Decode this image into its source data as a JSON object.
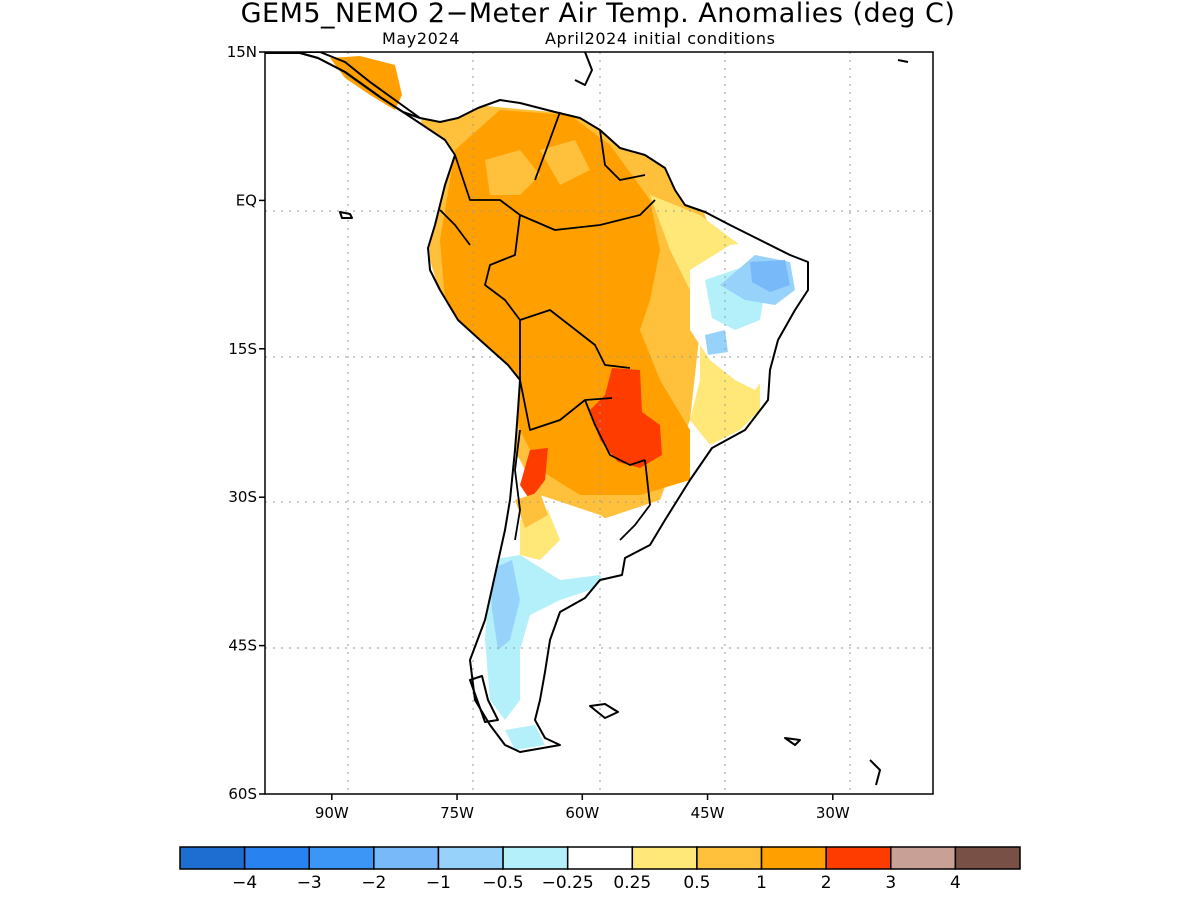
{
  "title": "GEM5_NEMO 2−Meter Air Temp. Anomalies (deg C)",
  "subtitle_left": "May2024",
  "subtitle_right": "April2024 initial conditions",
  "map": {
    "lon_range": [
      -98,
      -18
    ],
    "lat_range": [
      -60,
      15
    ],
    "lat_ticks": [
      {
        "value": 15,
        "label": "15N"
      },
      {
        "value": 0,
        "label": "EQ"
      },
      {
        "value": -15,
        "label": "15S"
      },
      {
        "value": -30,
        "label": "30S"
      },
      {
        "value": -45,
        "label": "45S"
      },
      {
        "value": -60,
        "label": "60S"
      }
    ],
    "lon_ticks": [
      {
        "value": -90,
        "label": "90W"
      },
      {
        "value": -75,
        "label": "75W"
      },
      {
        "value": -60,
        "label": "60W"
      },
      {
        "value": -45,
        "label": "45W"
      },
      {
        "value": -30,
        "label": "30W"
      }
    ],
    "grid": true
  },
  "colorbar": {
    "colors": [
      "#1e6ed2",
      "#2882f0",
      "#3c96f5",
      "#78b9fa",
      "#96d2fa",
      "#b4f0fa",
      "#ffffff",
      "#ffe878",
      "#ffc03c",
      "#ffa000",
      "#ff3c00",
      "#c8a096",
      "#785046"
    ],
    "labels": [
      "−4",
      "−3",
      "−2",
      "−1",
      "−0.5",
      "−0.25",
      "0.25",
      "0.5",
      "1",
      "2",
      "3",
      "4"
    ]
  }
}
